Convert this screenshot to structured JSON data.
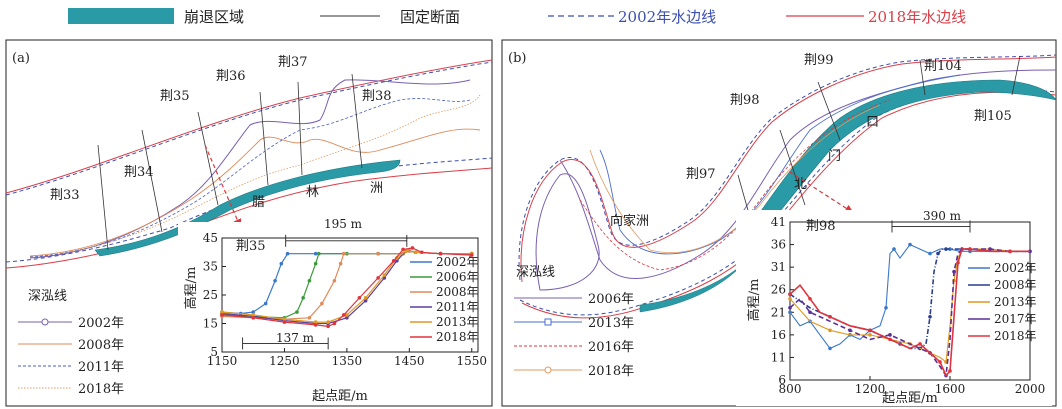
{
  "legend": {
    "erosion": "崩退区域",
    "section": "固定断面",
    "wl2002": "2002年水边线",
    "wl2018": "2018年水边线"
  },
  "colors": {
    "erosion": "#2a9aa6",
    "wl2002": "#3b4fb0",
    "wl2018": "#d9404a",
    "line2002": "#3a78c9",
    "line2006": "#3c9a3c",
    "line2008": "#e08a5a",
    "line2011": "#5a3fa0",
    "line2013": "#e09a20",
    "line2018": "#e0343c"
  },
  "panel_a": {
    "tag": "(a)",
    "sections": [
      "荆33",
      "荆34",
      "荆35",
      "荆36",
      "荆37",
      "荆38"
    ],
    "place": [
      "腊",
      "林",
      "洲"
    ],
    "thalweg": {
      "title": "深泓线",
      "years": [
        "2002年",
        "2008年",
        "2011年",
        "2018年"
      ]
    },
    "inset": {
      "section": "荆35",
      "top_dim": "195 m",
      "bottom_dim": "137 m",
      "ylabel": "高程/m",
      "xlabel": "起点距/m",
      "xticks": [
        "1150",
        "1250",
        "1350",
        "1450",
        "1550"
      ],
      "yticks": [
        "45",
        "35",
        "25",
        "15",
        "5"
      ],
      "series": [
        "2002年",
        "2006年",
        "2008年",
        "2011年",
        "2013年",
        "2018年"
      ]
    }
  },
  "panel_b": {
    "tag": "(b)",
    "sections": [
      "荆97",
      "荆98",
      "荆99",
      "荆104",
      "荆105"
    ],
    "places": {
      "xiangjiazhou": "向家洲",
      "bei": "北",
      "men": "门",
      "kou": "口"
    },
    "thalweg": {
      "title": "深泓线",
      "years": [
        "2006年",
        "2013年",
        "2016年",
        "2018年"
      ]
    },
    "inset": {
      "section": "荆98",
      "top_dim": "390 m",
      "ylabel": "高程/m",
      "xlabel": "起点距/m",
      "xticks": [
        "800",
        "1200",
        "1600",
        "2000"
      ],
      "yticks": [
        "41",
        "36",
        "31",
        "26",
        "21",
        "16",
        "11",
        "6"
      ],
      "series": [
        "2002年",
        "2008年",
        "2013年",
        "2017年",
        "2018年"
      ]
    }
  },
  "chart_data": [
    {
      "type": "line",
      "title": "荆35",
      "xlabel": "起点距/m",
      "ylabel": "高程/m",
      "xlim": [
        1150,
        1560
      ],
      "ylim": [
        5,
        45
      ],
      "series": [
        {
          "name": "2002年",
          "x": [
            1150,
            1180,
            1200,
            1220,
            1235,
            1245,
            1255,
            1300,
            1350,
            1400,
            1440,
            1450,
            1460,
            1500,
            1550
          ],
          "y": [
            19,
            18.5,
            19,
            22,
            30,
            36,
            39.5,
            39.5,
            39.5,
            39.5,
            39.5,
            40.5,
            40,
            39.5,
            39.5
          ]
        },
        {
          "name": "2006年",
          "x": [
            1150,
            1200,
            1250,
            1270,
            1280,
            1290,
            1300,
            1305,
            1350,
            1400,
            1440,
            1450,
            1460,
            1500,
            1550
          ],
          "y": [
            18,
            17.5,
            17,
            19,
            24,
            30,
            36,
            39.5,
            39.5,
            39.5,
            39.5,
            40.5,
            40,
            39.5,
            39.5
          ]
        },
        {
          "name": "2008年",
          "x": [
            1150,
            1200,
            1250,
            1290,
            1310,
            1330,
            1340,
            1345,
            1400,
            1440,
            1450,
            1460,
            1500,
            1550
          ],
          "y": [
            17.5,
            17,
            16.5,
            17,
            22,
            30,
            36,
            39.5,
            39.5,
            39.5,
            40.5,
            40,
            39.5,
            39.5
          ]
        },
        {
          "name": "2011年",
          "x": [
            1150,
            1200,
            1250,
            1300,
            1320,
            1350,
            1380,
            1410,
            1430,
            1445,
            1460,
            1500,
            1550
          ],
          "y": [
            18.5,
            17.5,
            16,
            15,
            15,
            17,
            23,
            31,
            37,
            40.5,
            40,
            39.5,
            39.5
          ]
        },
        {
          "name": "2013年",
          "x": [
            1150,
            1200,
            1250,
            1300,
            1320,
            1350,
            1380,
            1410,
            1430,
            1445,
            1460,
            1500,
            1550
          ],
          "y": [
            19,
            18,
            16.5,
            15.5,
            15.5,
            18,
            24,
            32,
            38,
            40.5,
            40,
            39.5,
            39.5
          ]
        },
        {
          "name": "2018年",
          "x": [
            1150,
            1200,
            1250,
            1300,
            1320,
            1330,
            1345,
            1370,
            1400,
            1425,
            1440,
            1455,
            1470,
            1500,
            1550
          ],
          "y": [
            18,
            17,
            15.5,
            14.5,
            14,
            15,
            18,
            24,
            31,
            37,
            41,
            41.5,
            40,
            39.5,
            39
          ]
        }
      ]
    },
    {
      "type": "line",
      "title": "荆98",
      "xlabel": "起点距/m",
      "ylabel": "高程/m",
      "xlim": [
        800,
        2000
      ],
      "ylim": [
        6,
        41
      ],
      "series": [
        {
          "name": "2002年",
          "x": [
            800,
            850,
            900,
            950,
            1000,
            1050,
            1100,
            1150,
            1200,
            1250,
            1280,
            1300,
            1320,
            1350,
            1400,
            1450,
            1500,
            1550,
            1600,
            1650,
            1700,
            1800,
            1900,
            2000
          ],
          "y": [
            21,
            18,
            19,
            16,
            13,
            14,
            16,
            15,
            17,
            18,
            22,
            34,
            35,
            33,
            36,
            35,
            34,
            35,
            35,
            34.5,
            34.5,
            34.5,
            34.5,
            34.5
          ]
        },
        {
          "name": "2008年",
          "x": [
            800,
            900,
            1000,
            1100,
            1200,
            1300,
            1350,
            1400,
            1450,
            1480,
            1500,
            1520,
            1540,
            1560,
            1580,
            1600,
            1700,
            1800,
            1900,
            2000
          ],
          "y": [
            25,
            22,
            20,
            18,
            17,
            15,
            14,
            13,
            13,
            14,
            20,
            30,
            34,
            35,
            35,
            35,
            35,
            34.5,
            34.5,
            34.5
          ]
        },
        {
          "name": "2013年",
          "x": [
            800,
            900,
            1000,
            1100,
            1200,
            1300,
            1400,
            1450,
            1500,
            1550,
            1580,
            1600,
            1620,
            1640,
            1660,
            1700,
            1800,
            1900,
            2000
          ],
          "y": [
            24,
            19,
            17,
            16,
            16,
            15,
            14,
            13,
            12,
            11,
            10,
            18,
            28,
            33,
            35,
            35,
            35,
            34.5,
            34.5
          ]
        },
        {
          "name": "2017年",
          "x": [
            800,
            850,
            900,
            1000,
            1100,
            1200,
            1300,
            1400,
            1500,
            1550,
            1580,
            1600,
            1620,
            1640,
            1660,
            1700,
            1800,
            1900,
            2000
          ],
          "y": [
            22,
            24,
            21,
            19,
            17,
            15,
            16,
            14,
            12,
            9,
            7,
            15,
            30,
            34,
            35,
            35,
            35,
            34.5,
            34.5
          ]
        },
        {
          "name": "2018年",
          "x": [
            800,
            850,
            900,
            950,
            1000,
            1100,
            1200,
            1250,
            1300,
            1400,
            1450,
            1500,
            1550,
            1580,
            1600,
            1620,
            1640,
            1660,
            1700,
            1800,
            1900,
            2000
          ],
          "y": [
            25,
            27,
            24,
            21,
            20,
            18,
            17,
            16,
            15,
            13,
            14,
            12,
            10,
            7,
            8,
            20,
            32,
            35,
            35,
            34.5,
            34.5,
            34.5
          ]
        }
      ]
    }
  ]
}
